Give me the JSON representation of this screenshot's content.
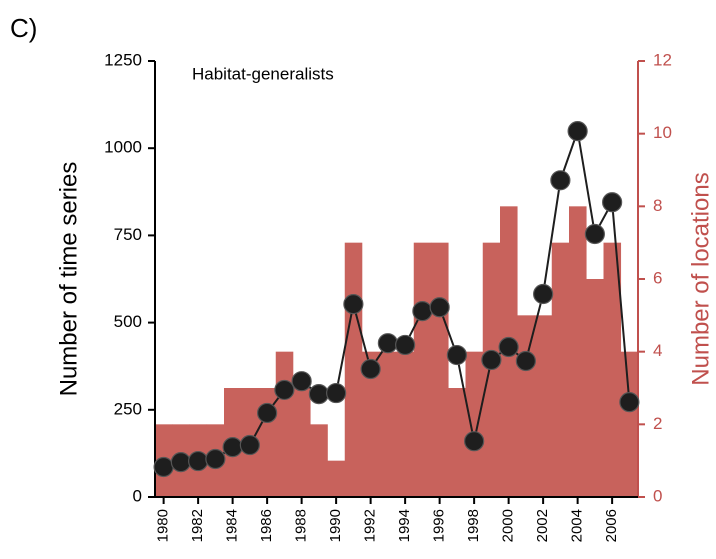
{
  "chart_data": {
    "type": "combo",
    "panel_label": "C)",
    "annotation": "Habitat-generalists",
    "y_label": "Number of time series",
    "y2_label": "Number of locations",
    "x": [
      1980,
      1981,
      1982,
      1983,
      1984,
      1985,
      1986,
      1987,
      1988,
      1989,
      1990,
      1991,
      1992,
      1993,
      1994,
      1995,
      1996,
      1997,
      1998,
      1999,
      2000,
      2001,
      2002,
      2003,
      2004,
      2005,
      2006,
      2007
    ],
    "xlim": [
      1979.5,
      2007.5
    ],
    "xticks": [
      1980,
      1982,
      1984,
      1986,
      1988,
      1990,
      1992,
      1994,
      1996,
      1998,
      2000,
      2002,
      2004,
      2006
    ],
    "ylim": [
      0,
      1250
    ],
    "yticks": [
      0,
      250,
      500,
      750,
      1000,
      1250
    ],
    "y2lim": [
      0,
      12
    ],
    "y2ticks": [
      0,
      2,
      4,
      6,
      8,
      10,
      12
    ],
    "y2_color": "#c0504d",
    "series": [
      {
        "type": "bar",
        "axis": "y2",
        "color": "#c8625c",
        "values": [
          2,
          2,
          2,
          2,
          3,
          3,
          3,
          4,
          3,
          2,
          1,
          7,
          4,
          4,
          4,
          7,
          7,
          3,
          4,
          7,
          8,
          5,
          5,
          7,
          8,
          6,
          7,
          4
        ]
      },
      {
        "type": "line",
        "color": "#1e1e1e",
        "values": [
          86,
          100,
          103,
          109,
          143,
          149,
          241,
          307,
          332,
          295,
          298,
          553,
          367,
          441,
          436,
          533,
          544,
          407,
          160,
          393,
          430,
          390,
          582,
          908,
          1049,
          754,
          845,
          272
        ]
      }
    ]
  }
}
